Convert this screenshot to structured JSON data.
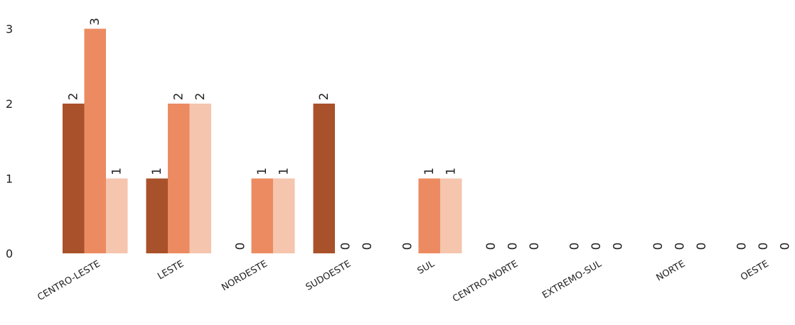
{
  "chart_data": {
    "type": "bar",
    "title": "",
    "xlabel": "",
    "ylabel": "",
    "ylim": [
      0,
      3
    ],
    "yticks": [
      0,
      1,
      2,
      3
    ],
    "grid": false,
    "legend": "none",
    "categories": [
      "CENTRO-LESTE",
      "LESTE",
      "NORDESTE",
      "SUDOESTE",
      "SUL",
      "CENTRO-NORTE",
      "EXTREMO-SUL",
      "NORTE",
      "OESTE"
    ],
    "series": [
      {
        "color": "#A9512A",
        "values": [
          2,
          1,
          0,
          2,
          0,
          0,
          0,
          0,
          0
        ]
      },
      {
        "color": "#EC8B61",
        "values": [
          3,
          2,
          1,
          0,
          1,
          0,
          0,
          0,
          0
        ]
      },
      {
        "color": "#F5C5AE",
        "values": [
          1,
          2,
          1,
          0,
          1,
          0,
          0,
          0,
          0
        ]
      }
    ]
  }
}
